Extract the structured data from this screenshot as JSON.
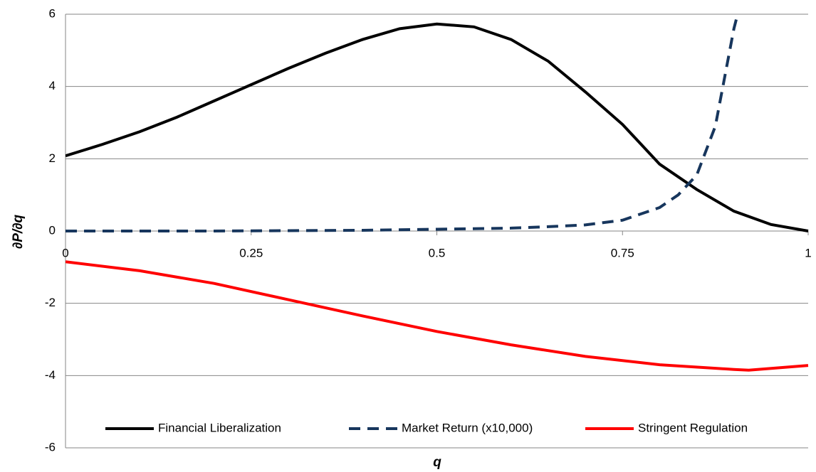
{
  "chart_data": {
    "type": "line",
    "x_label": "q",
    "y_label": "∂P/∂q",
    "xlim": [
      0,
      1
    ],
    "xticks": [
      0,
      0.25,
      0.5,
      0.75,
      1
    ],
    "ylim": [
      -6,
      6
    ],
    "yticks": [
      -6,
      -4,
      -2,
      0,
      2,
      4,
      6
    ],
    "grid": true,
    "legend": "bottom",
    "series": [
      {
        "name": "Financial Liberalization",
        "color": "#000000",
        "dash": "solid",
        "x": [
          0,
          0.05,
          0.1,
          0.15,
          0.2,
          0.25,
          0.3,
          0.35,
          0.4,
          0.45,
          0.5,
          0.55,
          0.6,
          0.65,
          0.7,
          0.75,
          0.8,
          0.85,
          0.9,
          0.95,
          1
        ],
        "values": [
          2.08,
          2.4,
          2.75,
          3.15,
          3.6,
          4.05,
          4.5,
          4.92,
          5.3,
          5.6,
          5.73,
          5.65,
          5.3,
          4.7,
          3.85,
          2.95,
          1.85,
          1.15,
          0.55,
          0.18,
          0
        ]
      },
      {
        "name": "Market Return (x10,000)",
        "color": "#17365d",
        "dash": "dashed",
        "x": [
          0,
          0.1,
          0.2,
          0.3,
          0.4,
          0.5,
          0.6,
          0.65,
          0.7,
          0.75,
          0.8,
          0.825,
          0.85,
          0.875,
          0.9,
          0.905
        ],
        "values": [
          0,
          0,
          0,
          0.01,
          0.02,
          0.05,
          0.08,
          0.12,
          0.17,
          0.3,
          0.65,
          1.0,
          1.55,
          2.9,
          5.6,
          6
        ]
      },
      {
        "name": "Stringent Regulation",
        "color": "#ff0000",
        "dash": "solid",
        "x": [
          0,
          0.1,
          0.2,
          0.3,
          0.4,
          0.5,
          0.6,
          0.7,
          0.8,
          0.9,
          0.92,
          1
        ],
        "values": [
          -0.85,
          -1.1,
          -1.45,
          -1.9,
          -2.35,
          -2.78,
          -3.15,
          -3.47,
          -3.7,
          -3.83,
          -3.85,
          -3.72
        ]
      }
    ]
  }
}
